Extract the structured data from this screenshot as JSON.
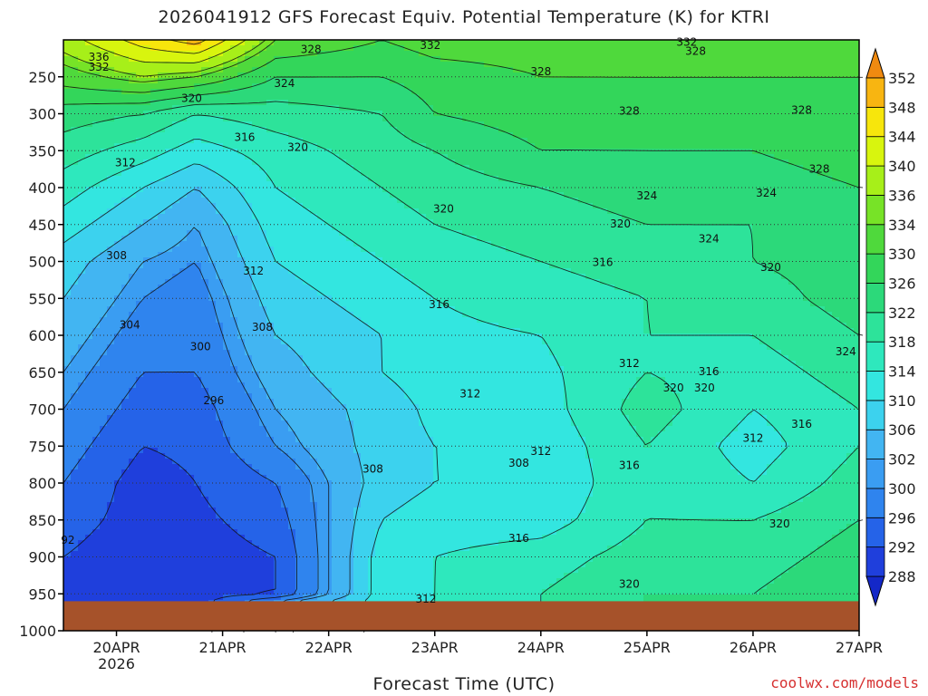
{
  "chart_data": {
    "type": "heatmap",
    "title": "2026041912 GFS Forecast Equiv. Potential Temperature (K) for KTRI",
    "xlabel": "Forecast Time (UTC)",
    "ylabel": "",
    "credit": "coolwx.com/models",
    "x_ticks": [
      "20APR",
      "21APR",
      "22APR",
      "23APR",
      "24APR",
      "25APR",
      "26APR",
      "27APR"
    ],
    "x_year_label": "2026",
    "x_range": [
      "2026-04-19T12:00",
      "2026-04-27T00:00"
    ],
    "y_ticks": [
      250,
      300,
      350,
      400,
      450,
      500,
      550,
      600,
      650,
      700,
      750,
      800,
      850,
      900,
      950,
      1000
    ],
    "y_range_hPa": [
      200,
      1000
    ],
    "colorbar": {
      "levels": [
        288,
        292,
        296,
        300,
        302,
        306,
        310,
        314,
        318,
        322,
        326,
        330,
        334,
        336,
        340,
        344,
        348,
        352
      ],
      "colors": [
        "#1f3fdc",
        "#2563e8",
        "#2f84ee",
        "#3a9df2",
        "#42b5f2",
        "#3cd2ee",
        "#33e6e0",
        "#2ee8bd",
        "#2de39a",
        "#2cd97a",
        "#33d65a",
        "#4fd93c",
        "#77e327",
        "#a7ef19",
        "#d8f50e",
        "#f7e60c",
        "#f8b511"
      ],
      "extend": "both"
    },
    "profile_pressure_hPa": [
      200,
      250,
      300,
      350,
      400,
      450,
      500,
      550,
      600,
      650,
      700,
      750,
      800,
      850,
      900,
      950,
      960
    ],
    "profiles": [
      {
        "time": "2026-04-19T12:00",
        "theta_e": [
          338,
          332,
          324,
          320,
          316,
          312,
          308,
          306,
          304,
          302,
          300,
          298,
          296,
          294,
          292,
          292,
          292
        ]
      },
      {
        "time": "2026-04-20T06:00",
        "theta_e": [
          346,
          336,
          322,
          316,
          310,
          306,
          302,
          300,
          298,
          296,
          294,
          292,
          290,
          290,
          289,
          289,
          289
        ]
      },
      {
        "time": "2026-04-20T18:00",
        "theta_e": [
          350,
          334,
          318,
          312,
          306,
          302,
          300,
          298,
          297,
          296,
          294,
          293,
          292,
          291,
          290,
          290,
          290
        ]
      },
      {
        "time": "2026-04-21T12:00",
        "theta_e": [
          334,
          326,
          320,
          316,
          314,
          312,
          310,
          308,
          306,
          304,
          302,
          300,
          296,
          294,
          292,
          292,
          300
        ]
      },
      {
        "time": "2026-04-22T12:00",
        "theta_e": [
          330,
          326,
          322,
          320,
          318,
          316,
          314,
          312,
          310,
          310,
          308,
          308,
          308,
          310,
          312,
          312,
          312
        ]
      },
      {
        "time": "2026-04-23T00:00",
        "theta_e": [
          332,
          328,
          326,
          322,
          320,
          318,
          316,
          314,
          313,
          312,
          311,
          310,
          310,
          312,
          314,
          314,
          314
        ]
      },
      {
        "time": "2026-04-24T00:00",
        "theta_e": [
          332,
          330,
          328,
          326,
          322,
          320,
          318,
          316,
          314,
          313,
          312,
          311,
          310,
          312,
          316,
          318,
          318
        ]
      },
      {
        "time": "2026-04-25T00:00",
        "theta_e": [
          334,
          330,
          328,
          326,
          324,
          322,
          320,
          318,
          318,
          318,
          320,
          318,
          318,
          318,
          320,
          322,
          322
        ]
      },
      {
        "time": "2026-04-26T00:00",
        "theta_e": [
          334,
          330,
          328,
          326,
          324,
          322,
          322,
          320,
          318,
          316,
          314,
          312,
          314,
          318,
          320,
          322,
          322
        ]
      },
      {
        "time": "2026-04-27T00:00",
        "theta_e": [
          334,
          330,
          328,
          328,
          326,
          324,
          324,
          324,
          322,
          320,
          318,
          318,
          320,
          322,
          324,
          326,
          326
        ]
      }
    ],
    "contour_labels": [
      {
        "text": "336",
        "time": "2026-04-19T20:00",
        "pressure": 228
      },
      {
        "text": "332",
        "time": "2026-04-19T20:00",
        "pressure": 242
      },
      {
        "text": "328",
        "time": "2026-04-21T20:00",
        "pressure": 218
      },
      {
        "text": "332",
        "time": "2026-04-22T23:00",
        "pressure": 212
      },
      {
        "text": "332",
        "time": "2026-04-25T09:00",
        "pressure": 208
      },
      {
        "text": "328",
        "time": "2026-04-25T11:00",
        "pressure": 220
      },
      {
        "text": "328",
        "time": "2026-04-24T00:00",
        "pressure": 248
      },
      {
        "text": "324",
        "time": "2026-04-21T14:00",
        "pressure": 264
      },
      {
        "text": "320",
        "time": "2026-04-20T17:00",
        "pressure": 284
      },
      {
        "text": "316",
        "time": "2026-04-21T05:00",
        "pressure": 337
      },
      {
        "text": "320",
        "time": "2026-04-21T17:00",
        "pressure": 350
      },
      {
        "text": "312",
        "time": "2026-04-20T02:00",
        "pressure": 371
      },
      {
        "text": "328",
        "time": "2026-04-24T20:00",
        "pressure": 301
      },
      {
        "text": "328",
        "time": "2026-04-26T11:00",
        "pressure": 300
      },
      {
        "text": "328",
        "time": "2026-04-26T15:00",
        "pressure": 380
      },
      {
        "text": "324",
        "time": "2026-04-25T00:00",
        "pressure": 416
      },
      {
        "text": "324",
        "time": "2026-04-26T03:00",
        "pressure": 412
      },
      {
        "text": "320",
        "time": "2026-04-23T02:00",
        "pressure": 434
      },
      {
        "text": "320",
        "time": "2026-04-24T18:00",
        "pressure": 454
      },
      {
        "text": "324",
        "time": "2026-04-25T14:00",
        "pressure": 474
      },
      {
        "text": "308",
        "time": "2026-04-20T00:00",
        "pressure": 497
      },
      {
        "text": "316",
        "time": "2026-04-24T14:00",
        "pressure": 506
      },
      {
        "text": "320",
        "time": "2026-04-26T04:00",
        "pressure": 513
      },
      {
        "text": "312",
        "time": "2026-04-21T07:00",
        "pressure": 518
      },
      {
        "text": "316",
        "time": "2026-04-23T01:00",
        "pressure": 563
      },
      {
        "text": "304",
        "time": "2026-04-20T03:00",
        "pressure": 591
      },
      {
        "text": "308",
        "time": "2026-04-21T09:00",
        "pressure": 594
      },
      {
        "text": "300",
        "time": "2026-04-20T19:00",
        "pressure": 620
      },
      {
        "text": "324",
        "time": "2026-04-26T21:00",
        "pressure": 627
      },
      {
        "text": "312",
        "time": "2026-04-24T20:00",
        "pressure": 643
      },
      {
        "text": "316",
        "time": "2026-04-25T14:00",
        "pressure": 654
      },
      {
        "text": "320",
        "time": "2026-04-25T06:00",
        "pressure": 676
      },
      {
        "text": "320",
        "time": "2026-04-25T13:00",
        "pressure": 676
      },
      {
        "text": "296",
        "time": "2026-04-20T22:00",
        "pressure": 693
      },
      {
        "text": "312",
        "time": "2026-04-23T08:00",
        "pressure": 684
      },
      {
        "text": "316",
        "time": "2026-04-26T11:00",
        "pressure": 725
      },
      {
        "text": "312",
        "time": "2026-04-26T00:00",
        "pressure": 744
      },
      {
        "text": "308",
        "time": "2026-04-23T19:00",
        "pressure": 778
      },
      {
        "text": "312",
        "time": "2026-04-24T00:00",
        "pressure": 762
      },
      {
        "text": "316",
        "time": "2026-04-24T20:00",
        "pressure": 781
      },
      {
        "text": "308",
        "time": "2026-04-22T10:00",
        "pressure": 786
      },
      {
        "text": "320",
        "time": "2026-04-26T06:00",
        "pressure": 860
      },
      {
        "text": "316",
        "time": "2026-04-23T19:00",
        "pressure": 880
      },
      {
        "text": "92",
        "time": "2026-04-19T13:00",
        "pressure": 882
      },
      {
        "text": "320",
        "time": "2026-04-24T20:00",
        "pressure": 942
      },
      {
        "text": "312",
        "time": "2026-04-22T22:00",
        "pressure": 962
      }
    ]
  }
}
